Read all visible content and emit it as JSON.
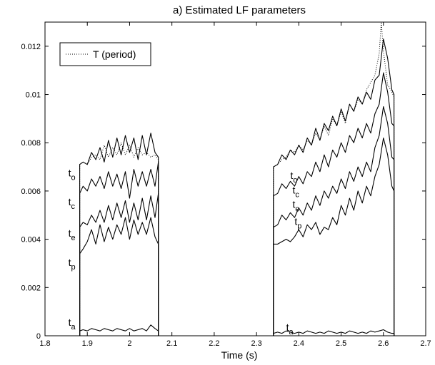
{
  "chart_data": {
    "type": "line",
    "title": "a) Estimated LF parameters",
    "xlabel": "Time (s)",
    "ylabel": "",
    "xlim": [
      1.8,
      2.7
    ],
    "ylim": [
      0,
      0.013
    ],
    "x_ticks": [
      "1.8",
      "1.9",
      "2",
      "2.1",
      "2.2",
      "2.3",
      "2.4",
      "2.5",
      "2.6",
      "2.7"
    ],
    "x_tick_values": [
      1.8,
      1.9,
      2.0,
      2.1,
      2.2,
      2.3,
      2.4,
      2.5,
      2.6,
      2.7
    ],
    "y_ticks": [
      "0",
      "0.002",
      "0.004",
      "0.006",
      "0.008",
      "0.01",
      "0.012"
    ],
    "y_tick_values": [
      0,
      0.002,
      0.004,
      0.006,
      0.008,
      0.01,
      0.012
    ],
    "grid": false,
    "legend": {
      "position": "top-left",
      "entries": [
        "T (period)"
      ]
    },
    "series": [
      {
        "name": "T (period)",
        "style": "dotted",
        "segments": [
          {
            "x": [
              1.882,
              1.89,
              1.9,
              1.91,
              1.92,
              1.93,
              1.94,
              1.95,
              1.96,
              1.97,
              1.98,
              1.99,
              2.0,
              2.01,
              2.02,
              2.03,
              2.04,
              2.05,
              2.06,
              2.068
            ],
            "y": [
              0.0071,
              0.0072,
              0.0071,
              0.0074,
              0.0075,
              0.0073,
              0.0079,
              0.0074,
              0.0078,
              0.0075,
              0.008,
              0.0075,
              0.0079,
              0.0074,
              0.0078,
              0.0075,
              0.0076,
              0.0074,
              0.0075,
              0.0073
            ]
          },
          {
            "x": [
              2.34,
              2.35,
              2.36,
              2.37,
              2.38,
              2.39,
              2.4,
              2.41,
              2.42,
              2.43,
              2.44,
              2.45,
              2.46,
              2.47,
              2.48,
              2.49,
              2.5,
              2.51,
              2.52,
              2.53,
              2.54,
              2.55,
              2.56,
              2.57,
              2.58,
              2.59,
              2.595,
              2.6,
              2.61,
              2.62,
              2.625
            ],
            "y": [
              0.007,
              0.0071,
              0.0073,
              0.0074,
              0.0077,
              0.0076,
              0.0079,
              0.0077,
              0.0081,
              0.0079,
              0.0084,
              0.0081,
              0.0087,
              0.0083,
              0.009,
              0.0087,
              0.0093,
              0.0088,
              0.0096,
              0.0093,
              0.0098,
              0.0096,
              0.0102,
              0.0105,
              0.0108,
              0.0117,
              0.013,
              0.0118,
              0.0104,
              0.0101,
              0.0099
            ]
          }
        ]
      },
      {
        "name": "to",
        "style": "solid",
        "segments": [
          {
            "x": [
              1.882,
              1.89,
              1.9,
              1.91,
              1.92,
              1.93,
              1.94,
              1.95,
              1.96,
              1.97,
              1.98,
              1.99,
              2.0,
              2.01,
              2.02,
              2.03,
              2.04,
              2.05,
              2.06,
              2.068
            ],
            "y": [
              0.0071,
              0.0072,
              0.0071,
              0.0076,
              0.0073,
              0.0078,
              0.0072,
              0.0081,
              0.0074,
              0.0082,
              0.0075,
              0.0083,
              0.0076,
              0.0082,
              0.0073,
              0.0083,
              0.0075,
              0.0084,
              0.0076,
              0.0074
            ]
          },
          {
            "x": [
              2.34,
              2.35,
              2.36,
              2.37,
              2.38,
              2.39,
              2.4,
              2.41,
              2.42,
              2.43,
              2.44,
              2.45,
              2.46,
              2.47,
              2.48,
              2.49,
              2.5,
              2.51,
              2.52,
              2.53,
              2.54,
              2.55,
              2.56,
              2.57,
              2.58,
              2.59,
              2.6,
              2.61,
              2.62,
              2.625
            ],
            "y": [
              0.007,
              0.0071,
              0.0075,
              0.0073,
              0.0077,
              0.0075,
              0.0079,
              0.0076,
              0.0082,
              0.0079,
              0.0086,
              0.0081,
              0.0088,
              0.0085,
              0.0091,
              0.0087,
              0.0094,
              0.0089,
              0.0096,
              0.0093,
              0.0099,
              0.0096,
              0.0101,
              0.0098,
              0.0106,
              0.0108,
              0.0123,
              0.0115,
              0.0102,
              0.01
            ]
          }
        ]
      },
      {
        "name": "tc",
        "style": "solid",
        "segments": [
          {
            "x": [
              1.882,
              1.89,
              1.9,
              1.91,
              1.92,
              1.93,
              1.94,
              1.95,
              1.96,
              1.97,
              1.98,
              1.99,
              2.0,
              2.01,
              2.02,
              2.03,
              2.04,
              2.05,
              2.06,
              2.068
            ],
            "y": [
              0.0059,
              0.0062,
              0.006,
              0.0065,
              0.0062,
              0.0066,
              0.0061,
              0.0068,
              0.0062,
              0.0067,
              0.0061,
              0.0068,
              0.0057,
              0.0069,
              0.0062,
              0.0068,
              0.0062,
              0.0069,
              0.0062,
              0.0072
            ]
          },
          {
            "x": [
              2.34,
              2.35,
              2.36,
              2.37,
              2.38,
              2.39,
              2.4,
              2.41,
              2.42,
              2.43,
              2.44,
              2.45,
              2.46,
              2.47,
              2.48,
              2.49,
              2.5,
              2.51,
              2.52,
              2.53,
              2.54,
              2.55,
              2.56,
              2.57,
              2.58,
              2.59,
              2.6,
              2.61,
              2.62,
              2.625
            ],
            "y": [
              0.0058,
              0.0059,
              0.0063,
              0.0061,
              0.0064,
              0.0062,
              0.0066,
              0.0063,
              0.0068,
              0.0066,
              0.0072,
              0.0068,
              0.0075,
              0.007,
              0.0077,
              0.0074,
              0.008,
              0.0076,
              0.0083,
              0.008,
              0.0086,
              0.0082,
              0.0088,
              0.0084,
              0.0092,
              0.0096,
              0.0109,
              0.0101,
              0.0088,
              0.0087
            ]
          }
        ]
      },
      {
        "name": "te",
        "style": "solid",
        "segments": [
          {
            "x": [
              1.882,
              1.89,
              1.9,
              1.91,
              1.92,
              1.93,
              1.94,
              1.95,
              1.96,
              1.97,
              1.98,
              1.99,
              2.0,
              2.01,
              2.02,
              2.03,
              2.04,
              2.05,
              2.06,
              2.068
            ],
            "y": [
              0.0045,
              0.0047,
              0.0046,
              0.005,
              0.0047,
              0.0052,
              0.0047,
              0.0054,
              0.0048,
              0.0055,
              0.0049,
              0.0056,
              0.0047,
              0.0055,
              0.0048,
              0.0057,
              0.0048,
              0.0058,
              0.0049,
              0.0059
            ]
          },
          {
            "x": [
              2.34,
              2.35,
              2.36,
              2.37,
              2.38,
              2.39,
              2.4,
              2.41,
              2.42,
              2.43,
              2.44,
              2.45,
              2.46,
              2.47,
              2.48,
              2.49,
              2.5,
              2.51,
              2.52,
              2.53,
              2.54,
              2.55,
              2.56,
              2.57,
              2.58,
              2.59,
              2.6,
              2.61,
              2.62,
              2.625
            ],
            "y": [
              0.0045,
              0.0046,
              0.005,
              0.0048,
              0.0051,
              0.0049,
              0.0053,
              0.005,
              0.0055,
              0.0052,
              0.0058,
              0.0054,
              0.006,
              0.0057,
              0.0062,
              0.0059,
              0.0065,
              0.0061,
              0.0068,
              0.0064,
              0.007,
              0.0066,
              0.0072,
              0.0068,
              0.0078,
              0.0083,
              0.0095,
              0.0088,
              0.0074,
              0.0073
            ]
          }
        ]
      },
      {
        "name": "tp",
        "style": "solid",
        "segments": [
          {
            "x": [
              1.882,
              1.89,
              1.9,
              1.91,
              1.92,
              1.93,
              1.94,
              1.95,
              1.96,
              1.97,
              1.98,
              1.99,
              2.0,
              2.01,
              2.02,
              2.03,
              2.04,
              2.05,
              2.06,
              2.068
            ],
            "y": [
              0.0034,
              0.0036,
              0.0039,
              0.0044,
              0.0038,
              0.0046,
              0.0039,
              0.0045,
              0.004,
              0.0046,
              0.0042,
              0.0049,
              0.004,
              0.0048,
              0.0042,
              0.0047,
              0.0042,
              0.0049,
              0.0041,
              0.0038
            ]
          },
          {
            "x": [
              2.34,
              2.35,
              2.36,
              2.37,
              2.38,
              2.39,
              2.4,
              2.41,
              2.42,
              2.43,
              2.44,
              2.45,
              2.46,
              2.47,
              2.48,
              2.49,
              2.5,
              2.51,
              2.52,
              2.53,
              2.54,
              2.55,
              2.56,
              2.57,
              2.58,
              2.59,
              2.6,
              2.61,
              2.62,
              2.625
            ],
            "y": [
              0.0038,
              0.0038,
              0.0039,
              0.004,
              0.0039,
              0.0041,
              0.0044,
              0.0041,
              0.0046,
              0.0044,
              0.0047,
              0.0042,
              0.0045,
              0.0044,
              0.0049,
              0.0046,
              0.0054,
              0.005,
              0.0057,
              0.0052,
              0.006,
              0.0055,
              0.0062,
              0.0058,
              0.0066,
              0.0071,
              0.0082,
              0.0075,
              0.0062,
              0.006
            ]
          }
        ]
      },
      {
        "name": "ta",
        "style": "solid",
        "segments": [
          {
            "x": [
              1.882,
              1.89,
              1.9,
              1.91,
              1.92,
              1.93,
              1.94,
              1.95,
              1.96,
              1.97,
              1.98,
              1.99,
              2.0,
              2.01,
              2.02,
              2.03,
              2.04,
              2.05,
              2.06,
              2.068
            ],
            "y": [
              0.0002,
              0.00025,
              0.0002,
              0.0003,
              0.00025,
              0.0002,
              0.0003,
              0.00025,
              0.0002,
              0.0003,
              0.00025,
              0.0002,
              0.0003,
              0.0002,
              0.00025,
              0.0003,
              0.0002,
              0.00045,
              0.0003,
              0.0002
            ]
          },
          {
            "x": [
              2.34,
              2.35,
              2.36,
              2.37,
              2.38,
              2.39,
              2.4,
              2.41,
              2.42,
              2.43,
              2.44,
              2.45,
              2.46,
              2.47,
              2.48,
              2.49,
              2.5,
              2.51,
              2.52,
              2.53,
              2.54,
              2.55,
              2.56,
              2.57,
              2.58,
              2.59,
              2.6,
              2.61,
              2.62,
              2.625
            ],
            "y": [
              0.0001,
              0.00015,
              0.0001,
              0.0002,
              0.00015,
              0.0001,
              0.00015,
              0.0001,
              0.0002,
              0.00015,
              0.0001,
              0.00015,
              0.0001,
              0.0002,
              0.00015,
              0.0001,
              0.00015,
              0.0001,
              0.0002,
              0.00015,
              0.0001,
              0.00015,
              0.0001,
              0.0002,
              0.00015,
              0.0002,
              0.00025,
              0.00015,
              0.0001,
              0.0001
            ]
          }
        ]
      }
    ],
    "annotations": [
      {
        "base": "t",
        "sub": "o",
        "x": 1.855,
        "y": 0.0066
      },
      {
        "base": "t",
        "sub": "c",
        "x": 1.855,
        "y": 0.0054
      },
      {
        "base": "t",
        "sub": "e",
        "x": 1.855,
        "y": 0.0041
      },
      {
        "base": "t",
        "sub": "p",
        "x": 1.855,
        "y": 0.0029
      },
      {
        "base": "t",
        "sub": "a",
        "x": 1.855,
        "y": 0.00042
      },
      {
        "base": "t",
        "sub": "o",
        "x": 2.38,
        "y": 0.0065
      },
      {
        "base": "t",
        "sub": "c",
        "x": 2.385,
        "y": 0.0059
      },
      {
        "base": "t",
        "sub": "e",
        "x": 2.385,
        "y": 0.0053
      },
      {
        "base": "t",
        "sub": "p",
        "x": 2.39,
        "y": 0.0046
      },
      {
        "base": "t",
        "sub": "a",
        "x": 2.37,
        "y": 0.0002
      }
    ]
  }
}
